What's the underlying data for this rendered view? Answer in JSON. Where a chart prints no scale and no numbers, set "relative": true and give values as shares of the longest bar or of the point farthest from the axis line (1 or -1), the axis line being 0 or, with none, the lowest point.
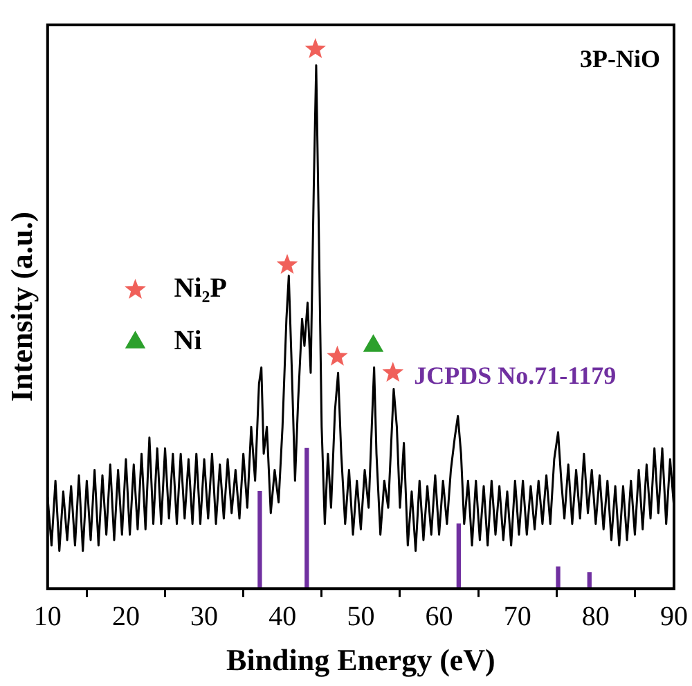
{
  "chart_data": {
    "type": "line",
    "relative": true,
    "xlabel": "Binding Energy (eV)",
    "ylabel": "Intensity (a.u.)",
    "xlim": [
      10,
      90
    ],
    "xticks": [
      10,
      20,
      30,
      40,
      50,
      60,
      70,
      80,
      90
    ],
    "legend": "left",
    "annotations": [
      "3P-NiO",
      "JCPDS No.71-1179"
    ],
    "series": [
      {
        "color": "#000000",
        "x": [
          10,
          10.5,
          11,
          11.5,
          12,
          12.5,
          13,
          13.5,
          14,
          14.5,
          15,
          15.5,
          16,
          16.5,
          17,
          17.5,
          18,
          18.5,
          19,
          19.5,
          20,
          20.5,
          21,
          21.5,
          22,
          22.5,
          23,
          23.5,
          24,
          24.5,
          25,
          25.5,
          26,
          26.5,
          27,
          27.5,
          28,
          28.5,
          29,
          29.5,
          30,
          30.5,
          31,
          31.5,
          32,
          32.5,
          33,
          33.5,
          34,
          34.5,
          35,
          35.5,
          36,
          36.5,
          37,
          37.3,
          37.6,
          38,
          38.5,
          39,
          39.5,
          40,
          40.5,
          40.8,
          41.2,
          41.6,
          42,
          42.5,
          42.8,
          43.2,
          43.6,
          44,
          44.3,
          44.6,
          45,
          45.4,
          45.8,
          46.2,
          46.7,
          47.1,
          47.5,
          48,
          48.5,
          49,
          49.5,
          50,
          50.5,
          51,
          51.4,
          51.7,
          52,
          52.5,
          53,
          53.5,
          54.2,
          54.6,
          55,
          55.5,
          56,
          56.5,
          57,
          57.5,
          58,
          58.5,
          59,
          59.5,
          60,
          60.5,
          61,
          61.5,
          62,
          62.4,
          62.8,
          63.2,
          63.7,
          64.2,
          64.7,
          65.2,
          65.7,
          66.2,
          66.7,
          67.2,
          67.7,
          68.2,
          68.7,
          69.2,
          69.7,
          70.2,
          70.7,
          71.2,
          71.7,
          72.2,
          72.7,
          73.2,
          73.7,
          74.2,
          74.7,
          75.2,
          75.6,
          76,
          76.5,
          77,
          77.5,
          78,
          78.5,
          79,
          79.5,
          80,
          80.5,
          81,
          81.5,
          82,
          82.5,
          83,
          83.5,
          84,
          84.5,
          85,
          85.5,
          86,
          86.5,
          87,
          87.5,
          88,
          88.5,
          89,
          89.5,
          90
        ],
        "values": [
          0.17,
          0.08,
          0.2,
          0.07,
          0.18,
          0.09,
          0.19,
          0.08,
          0.21,
          0.07,
          0.2,
          0.09,
          0.22,
          0.08,
          0.21,
          0.1,
          0.23,
          0.09,
          0.22,
          0.1,
          0.24,
          0.1,
          0.23,
          0.11,
          0.25,
          0.11,
          0.28,
          0.12,
          0.26,
          0.12,
          0.26,
          0.13,
          0.25,
          0.12,
          0.25,
          0.13,
          0.24,
          0.12,
          0.25,
          0.12,
          0.24,
          0.13,
          0.25,
          0.12,
          0.23,
          0.13,
          0.24,
          0.14,
          0.22,
          0.13,
          0.25,
          0.15,
          0.3,
          0.2,
          0.38,
          0.41,
          0.25,
          0.3,
          0.14,
          0.22,
          0.16,
          0.3,
          0.5,
          0.58,
          0.4,
          0.2,
          0.35,
          0.5,
          0.45,
          0.53,
          0.4,
          0.75,
          0.97,
          0.7,
          0.3,
          0.12,
          0.25,
          0.15,
          0.33,
          0.4,
          0.25,
          0.12,
          0.22,
          0.1,
          0.2,
          0.11,
          0.22,
          0.15,
          0.3,
          0.41,
          0.25,
          0.1,
          0.2,
          0.15,
          0.37,
          0.3,
          0.15,
          0.27,
          0.08,
          0.18,
          0.07,
          0.2,
          0.09,
          0.19,
          0.1,
          0.21,
          0.1,
          0.2,
          0.12,
          0.22,
          0.28,
          0.32,
          0.25,
          0.12,
          0.2,
          0.08,
          0.2,
          0.09,
          0.19,
          0.08,
          0.2,
          0.1,
          0.19,
          0.09,
          0.18,
          0.08,
          0.2,
          0.1,
          0.2,
          0.1,
          0.19,
          0.11,
          0.2,
          0.12,
          0.21,
          0.12,
          0.24,
          0.29,
          0.2,
          0.13,
          0.23,
          0.12,
          0.22,
          0.13,
          0.25,
          0.14,
          0.22,
          0.12,
          0.21,
          0.11,
          0.2,
          0.09,
          0.19,
          0.08,
          0.19,
          0.09,
          0.2,
          0.1,
          0.22,
          0.11,
          0.23,
          0.13,
          0.26,
          0.14,
          0.26,
          0.12,
          0.24,
          0.15
        ]
      },
      {
        "type": "bar",
        "color": "#7030a0",
        "x": [
          37.1,
          43.1,
          62.5,
          75.2,
          79.2
        ],
        "values": [
          0.18,
          0.26,
          0.12,
          0.04,
          0.03
        ]
      },
      {
        "type": "scatter",
        "name": "Ni₂P",
        "marker": "star",
        "color": "#f0605a",
        "x": [
          40.6,
          44.2,
          47.0,
          54.1
        ],
        "values": [
          0.6,
          1.0,
          0.43,
          0.4
        ]
      },
      {
        "type": "scatter",
        "name": "Ni",
        "marker": "triangle",
        "color": "#2ca02c",
        "x": [
          51.6
        ],
        "values": [
          0.45
        ]
      }
    ]
  }
}
